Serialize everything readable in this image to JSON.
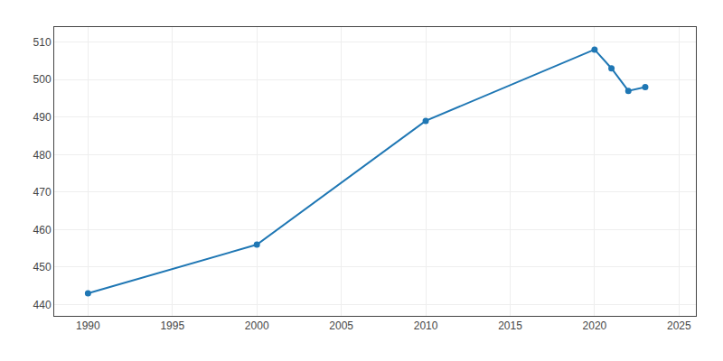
{
  "chart_data": {
    "type": "line",
    "x": [
      1990,
      2000,
      2010,
      2020,
      2021,
      2022,
      2023
    ],
    "values": [
      443,
      456,
      489,
      508,
      503,
      497,
      498
    ],
    "xlim": [
      1988,
      2026
    ],
    "ylim": [
      437,
      514
    ],
    "xticks": [
      1990,
      1995,
      2000,
      2005,
      2010,
      2015,
      2020,
      2025
    ],
    "yticks": [
      440,
      450,
      460,
      470,
      480,
      490,
      500,
      510
    ],
    "grid": true,
    "marker": "circle"
  }
}
